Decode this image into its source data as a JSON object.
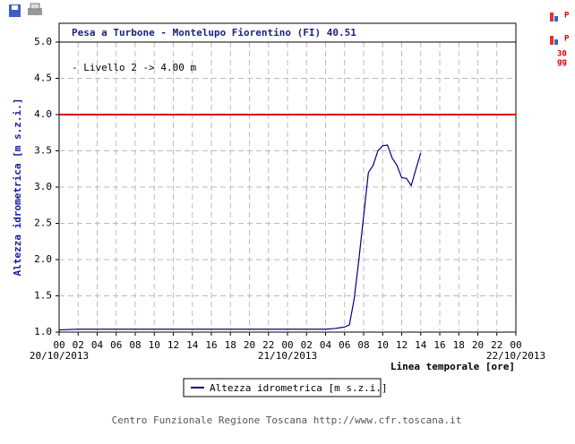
{
  "chart_data": {
    "type": "line",
    "title": "Pesa a Turbone - Montelupo Fiorentino (FI) 40.51",
    "ylabel": "Altezza idrometrica [m s.z.i.]",
    "xlabel": "Linea temporale [ore]",
    "footer": "Centro Funzionale Regione Toscana http://www.cfr.toscana.it",
    "toolbar_labels": [
      "P",
      "P",
      "30",
      "gg"
    ],
    "x": [
      0,
      2,
      4,
      6,
      8,
      10,
      12,
      14,
      16,
      18,
      20,
      22,
      24,
      26,
      28,
      29,
      30,
      30.5,
      31,
      31.5,
      32,
      32.5,
      33,
      33.5,
      34,
      34.5,
      35,
      35.5,
      36,
      36.5,
      37,
      37.5,
      38
    ],
    "series": [
      {
        "name": "Altezza idrometrica [m s.z.i.]",
        "color": "#000080",
        "values": [
          1.03,
          1.04,
          1.04,
          1.04,
          1.04,
          1.04,
          1.04,
          1.04,
          1.04,
          1.04,
          1.04,
          1.04,
          1.04,
          1.04,
          1.04,
          1.05,
          1.07,
          1.1,
          1.45,
          2.0,
          2.6,
          3.2,
          3.3,
          3.5,
          3.57,
          3.58,
          3.4,
          3.3,
          3.13,
          3.12,
          3.02,
          3.25,
          3.47
        ]
      }
    ],
    "threshold": {
      "value": 4.0,
      "label": "- Livello 2 -> 4.00 m",
      "color": "#e00000"
    },
    "xlim": [
      0,
      48
    ],
    "ylim": [
      1.0,
      5.0
    ],
    "xticks": [
      {
        "value": 0,
        "label": "00"
      },
      {
        "value": 2,
        "label": "02"
      },
      {
        "value": 4,
        "label": "04"
      },
      {
        "value": 6,
        "label": "06"
      },
      {
        "value": 8,
        "label": "08"
      },
      {
        "value": 10,
        "label": "10"
      },
      {
        "value": 12,
        "label": "12"
      },
      {
        "value": 14,
        "label": "14"
      },
      {
        "value": 16,
        "label": "16"
      },
      {
        "value": 18,
        "label": "18"
      },
      {
        "value": 20,
        "label": "20"
      },
      {
        "value": 22,
        "label": "22"
      },
      {
        "value": 24,
        "label": "00"
      },
      {
        "value": 26,
        "label": "02"
      },
      {
        "value": 28,
        "label": "04"
      },
      {
        "value": 30,
        "label": "06"
      },
      {
        "value": 32,
        "label": "08"
      },
      {
        "value": 34,
        "label": "10"
      },
      {
        "value": 36,
        "label": "12"
      },
      {
        "value": 38,
        "label": "14"
      },
      {
        "value": 40,
        "label": "16"
      },
      {
        "value": 42,
        "label": "18"
      },
      {
        "value": 44,
        "label": "20"
      },
      {
        "value": 46,
        "label": "22"
      },
      {
        "value": 48,
        "label": "00"
      }
    ],
    "date_labels": [
      {
        "value": 0,
        "label": "20/10/2013"
      },
      {
        "value": 24,
        "label": "21/10/2013"
      },
      {
        "value": 48,
        "label": "22/10/2013"
      }
    ],
    "yticks": [
      {
        "value": 1.0,
        "label": "1.0"
      },
      1.5,
      {
        "value": 2.0,
        "label": "2.0"
      },
      2.5,
      {
        "value": 3.0,
        "label": "3.0"
      },
      3.5,
      {
        "value": 4.0,
        "label": "4.0"
      },
      4.5,
      {
        "value": 5.0,
        "label": "5.0"
      }
    ],
    "grid": true
  }
}
